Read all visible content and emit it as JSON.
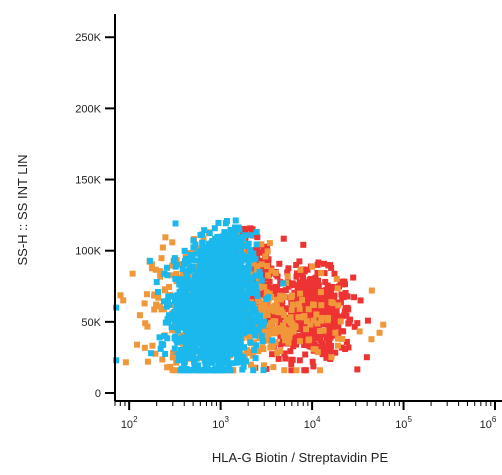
{
  "chart_data": {
    "type": "scatter",
    "xlabel": "HLA-G Biotin / Streptavidin PE",
    "ylabel": "SS-H :: SS INT LIN",
    "x_scale": "log",
    "xlim": [
      70,
      1000000
    ],
    "ylim": [
      0,
      260000
    ],
    "y_ticks": [
      {
        "value": 0,
        "label": "0"
      },
      {
        "value": 50000,
        "label": "50K"
      },
      {
        "value": 100000,
        "label": "100K"
      },
      {
        "value": 150000,
        "label": "150K"
      },
      {
        "value": 200000,
        "label": "200K"
      },
      {
        "value": 250000,
        "label": "250K"
      }
    ],
    "x_ticks": [
      {
        "value": 100,
        "base": "10",
        "exp": "2"
      },
      {
        "value": 1000,
        "base": "10",
        "exp": "3"
      },
      {
        "value": 10000,
        "base": "10",
        "exp": "4"
      },
      {
        "value": 100000,
        "base": "10",
        "exp": "5"
      },
      {
        "value": 1000000,
        "base": "10",
        "exp": "6"
      }
    ],
    "grid": false,
    "series": [
      {
        "color": "#ee3333",
        "clusters": [
          {
            "cx": 10000,
            "cy": 55000,
            "sx_log": 0.22,
            "sy": 15000,
            "n": 520
          },
          {
            "cx": 2800,
            "cy": 78000,
            "sx_log": 0.12,
            "sy": 15000,
            "n": 120
          },
          {
            "cx": 1700,
            "cy": 112000,
            "sx_log": 0.08,
            "sy": 4000,
            "n": 30
          }
        ]
      },
      {
        "color": "#f0973a",
        "clusters": [
          {
            "cx": 900,
            "cy": 60000,
            "sx_log": 0.35,
            "sy": 22000,
            "n": 520
          },
          {
            "cx": 5000,
            "cy": 48000,
            "sx_log": 0.35,
            "sy": 14000,
            "n": 140
          }
        ]
      },
      {
        "color": "#1ab8ec",
        "clusters": [
          {
            "cx": 800,
            "cy": 55000,
            "sx_log": 0.2,
            "sy": 18000,
            "n": 1700
          },
          {
            "cx": 1100,
            "cy": 88000,
            "sx_log": 0.15,
            "sy": 12000,
            "n": 500
          }
        ]
      }
    ],
    "outlier_points": [
      {
        "x": 72,
        "y": 60000,
        "color": "#1ab8ec"
      },
      {
        "x": 72,
        "y": 23000,
        "color": "#1ab8ec"
      },
      {
        "x": 240,
        "y": 40000,
        "color": "#1ab8ec"
      },
      {
        "x": 300,
        "y": 25000,
        "color": "#f0973a"
      },
      {
        "x": 45000,
        "y": 72000,
        "color": "#f0973a"
      },
      {
        "x": 60000,
        "y": 48000,
        "color": "#f0973a"
      },
      {
        "x": 25000,
        "y": 32000,
        "color": "#ee3333"
      }
    ]
  }
}
